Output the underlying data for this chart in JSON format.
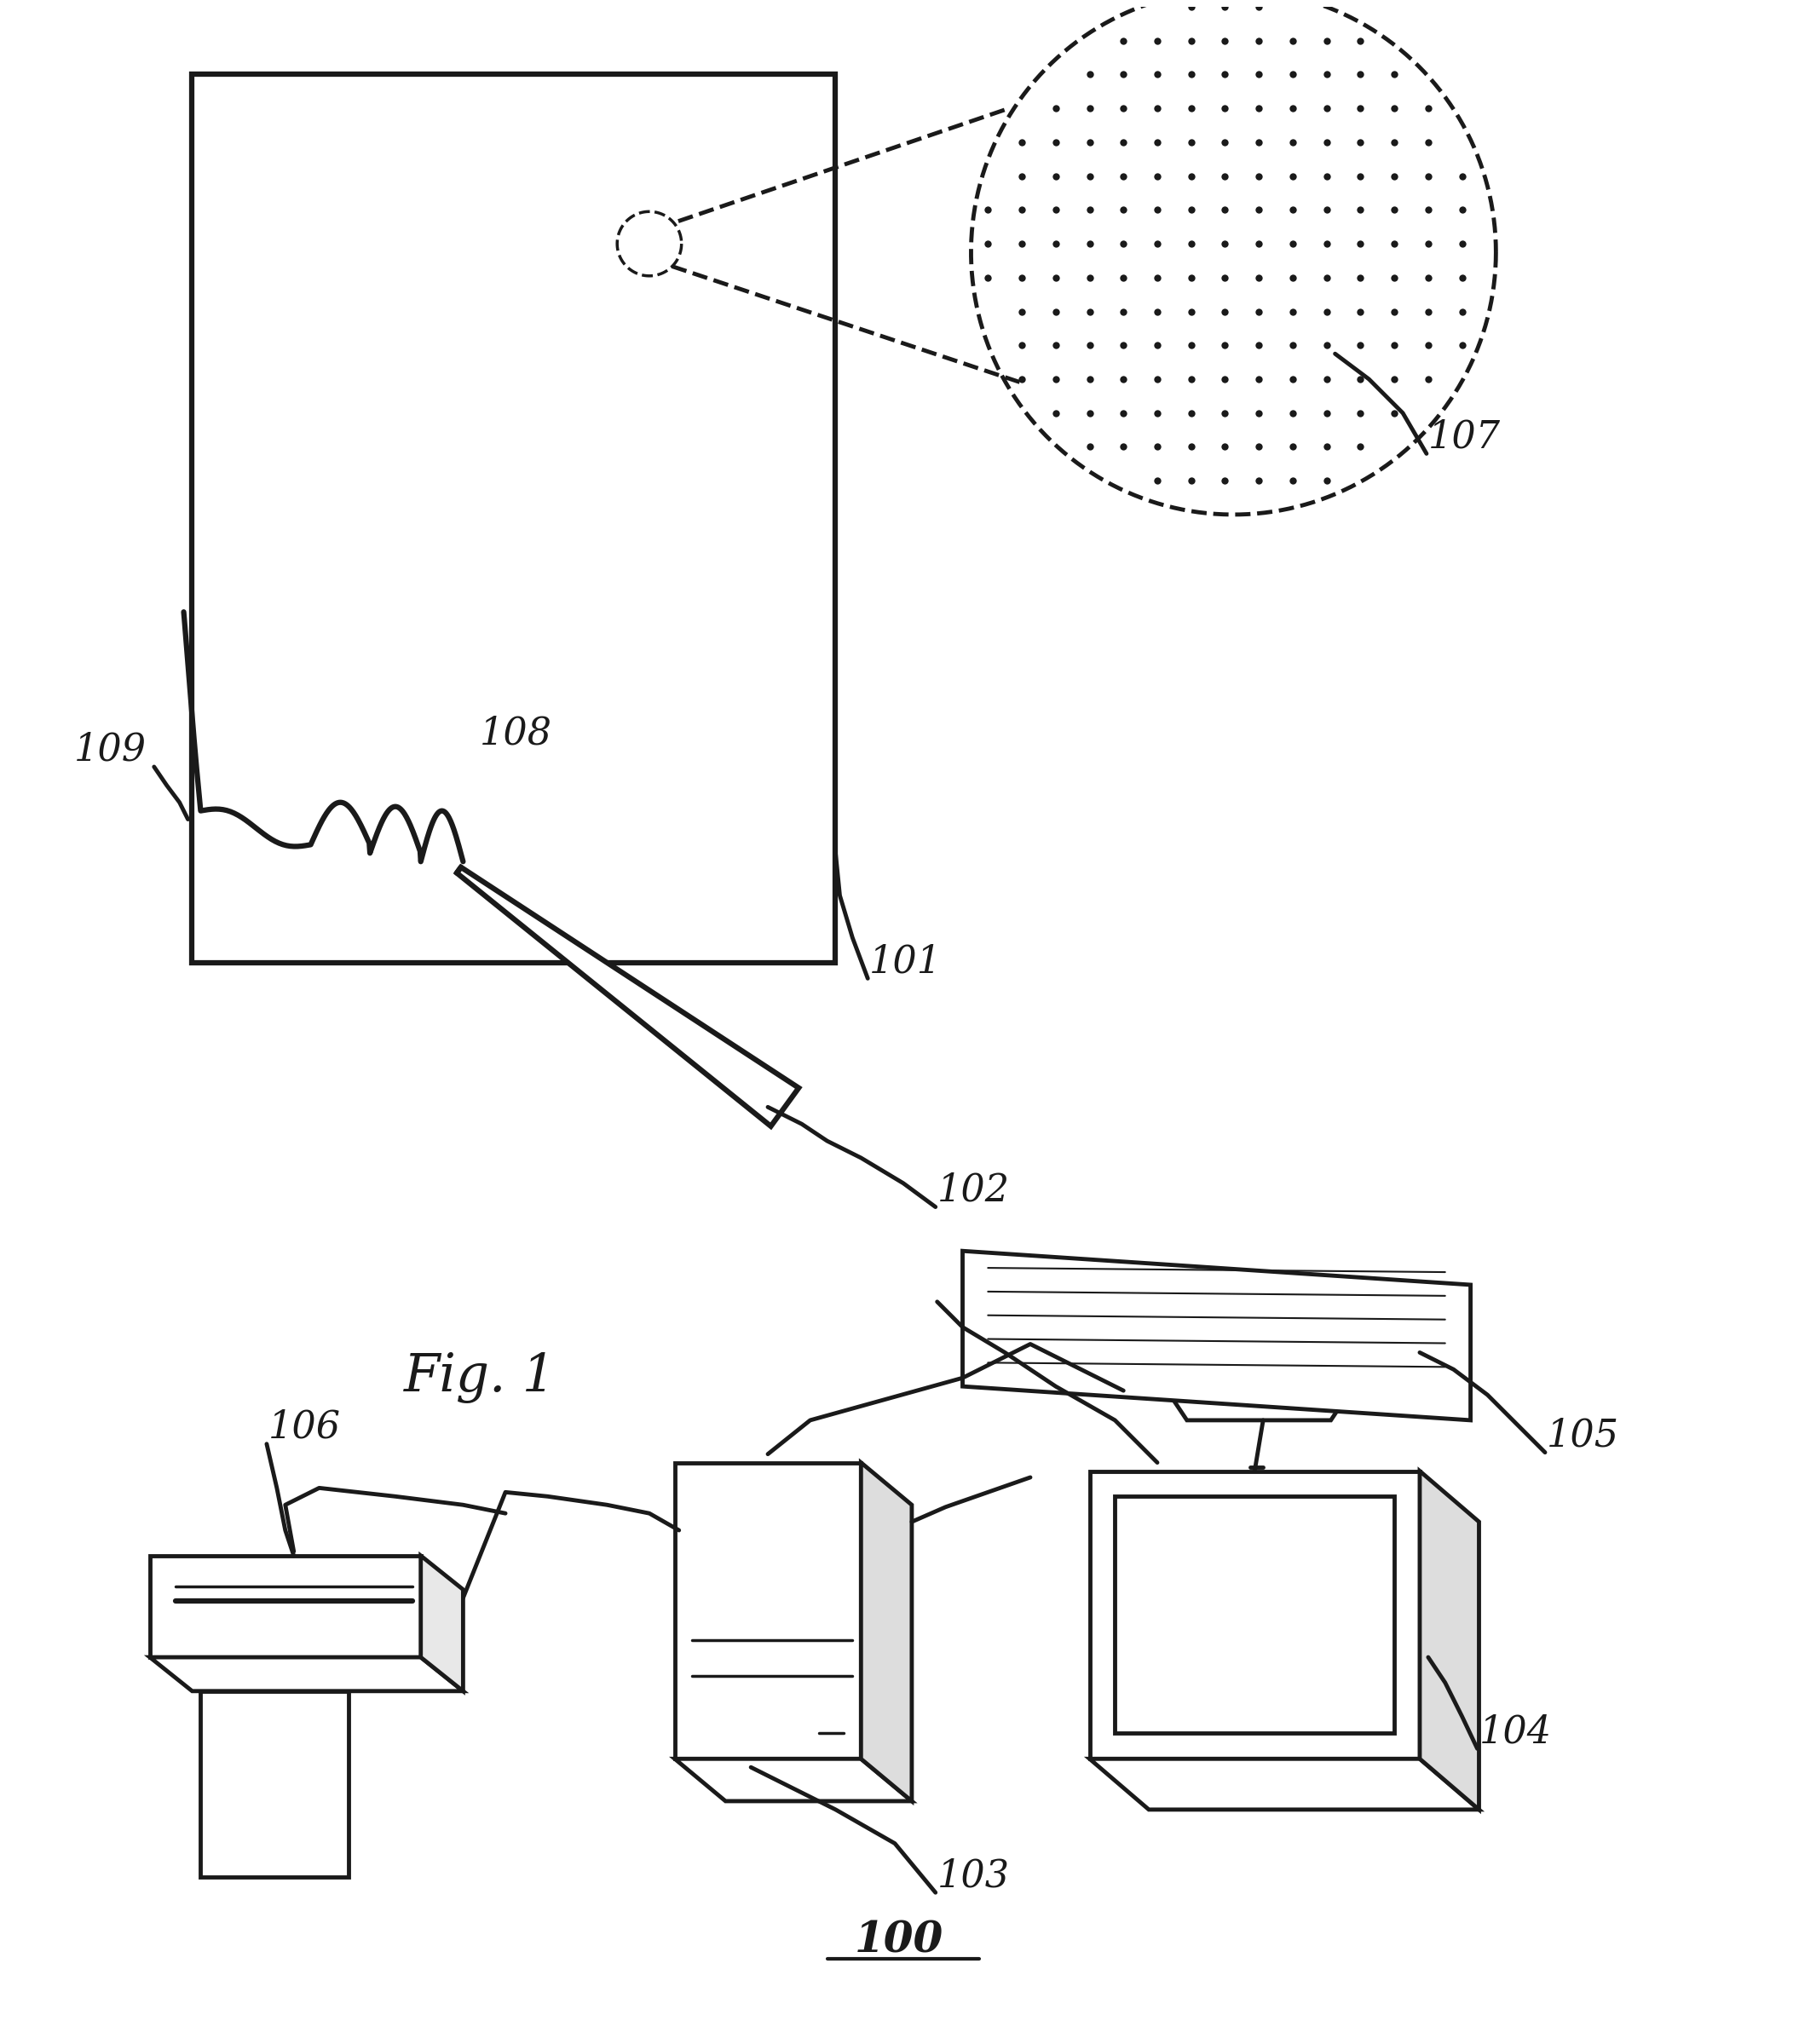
{
  "fig_width": 21.11,
  "fig_height": 23.99,
  "bg_color": "#ffffff",
  "line_color": "#1a1a1a",
  "label_100": "100",
  "label_103": "103",
  "label_104": "104",
  "label_105": "105",
  "label_106": "106",
  "fig1_label": "Fig. 1",
  "label_102": "102",
  "label_101": "101",
  "label_108": "108",
  "label_109": "109",
  "label_107": "107",
  "font_size_labels": 28,
  "font_size_fig": 36
}
